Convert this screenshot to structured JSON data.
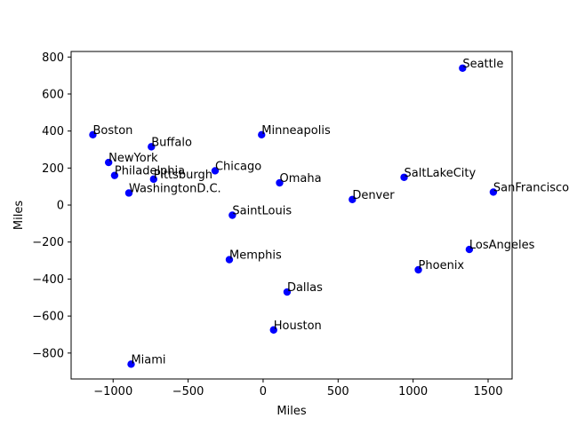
{
  "chart_data": {
    "type": "scatter",
    "title": "",
    "xlabel": "Miles",
    "ylabel": "Miles",
    "xlim": [
      -1280,
      1660
    ],
    "ylim": [
      -940,
      830
    ],
    "xticks": [
      -1000,
      -500,
      0,
      500,
      1000,
      1500
    ],
    "yticks": [
      -800,
      -600,
      -400,
      -200,
      0,
      200,
      400,
      600,
      800
    ],
    "xtick_labels": [
      "−1000",
      "−500",
      "0",
      "500",
      "1000",
      "1500"
    ],
    "ytick_labels": [
      "−800",
      "−600",
      "−400",
      "−200",
      "0",
      "200",
      "400",
      "600",
      "800"
    ],
    "grid": false,
    "marker_color": "#0000ff",
    "points": [
      {
        "label": "Boston",
        "x": -1135,
        "y": 380
      },
      {
        "label": "Buffalo",
        "x": -745,
        "y": 315
      },
      {
        "label": "NewYork",
        "x": -1030,
        "y": 230
      },
      {
        "label": "Philadelphia",
        "x": -990,
        "y": 160
      },
      {
        "label": "Pittsburgh",
        "x": -730,
        "y": 140
      },
      {
        "label": "WashingtonD.C.",
        "x": -895,
        "y": 65
      },
      {
        "label": "Miami",
        "x": -880,
        "y": -860
      },
      {
        "label": "Chicago",
        "x": -320,
        "y": 185
      },
      {
        "label": "SaintLouis",
        "x": -205,
        "y": -55
      },
      {
        "label": "Memphis",
        "x": -225,
        "y": -295
      },
      {
        "label": "Minneapolis",
        "x": -10,
        "y": 380
      },
      {
        "label": "Omaha",
        "x": 110,
        "y": 120
      },
      {
        "label": "Dallas",
        "x": 160,
        "y": -470
      },
      {
        "label": "Houston",
        "x": 70,
        "y": -675
      },
      {
        "label": "Denver",
        "x": 595,
        "y": 30
      },
      {
        "label": "SaltLakeCity",
        "x": 940,
        "y": 150
      },
      {
        "label": "Seattle",
        "x": 1330,
        "y": 740
      },
      {
        "label": "SanFrancisco",
        "x": 1535,
        "y": 70
      },
      {
        "label": "LosAngeles",
        "x": 1375,
        "y": -240
      },
      {
        "label": "Phoenix",
        "x": 1035,
        "y": -350
      }
    ]
  }
}
